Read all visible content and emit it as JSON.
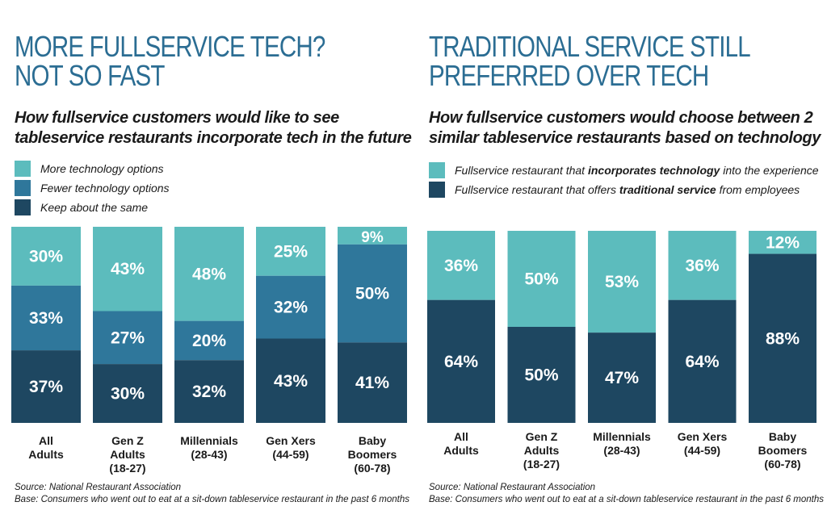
{
  "colors": {
    "light": "#5cbcbd",
    "mid": "#2f779b",
    "dark": "#1e4761"
  },
  "left": {
    "headline": [
      "MORE FULLSERVICE TECH?",
      "NOT SO FAST"
    ],
    "subtitle": [
      "How fullservice customers would like to see",
      "tableservice restaurants incorporate tech in the future"
    ],
    "legend": [
      {
        "label": "More technology options",
        "color": "#5cbcbd"
      },
      {
        "label": "Fewer technology options",
        "color": "#2f779b"
      },
      {
        "label": "Keep about the same",
        "color": "#1e4761"
      }
    ],
    "source": "Source: National Restaurant Association",
    "base": "Base: Consumers who went out to eat at a sit-down tableservice restaurant in the past 6 months"
  },
  "right": {
    "headline": [
      "TRADITIONAL SERVICE STILL",
      "PREFERRED OVER TECH"
    ],
    "subtitle": [
      "How fullservice customers would choose between 2",
      "similar tableservice restaurants based on technology"
    ],
    "legend": [
      {
        "pre": "Fullservice restaurant that ",
        "bold": "incorporates technology",
        "post": " into the experience",
        "color": "#5cbcbd"
      },
      {
        "pre": "Fullservice restaurant that offers ",
        "bold": "traditional service",
        "post": " from employees",
        "color": "#1e4761"
      }
    ],
    "source": "Source: National Restaurant Association",
    "base": "Base: Consumers who went out to eat at a sit-down tableservice restaurant in the past 6 months"
  },
  "chart_data": [
    {
      "type": "bar",
      "stacked": true,
      "orientation": "vertical",
      "title": "More fullservice tech? Not so fast",
      "categories": [
        [
          "All",
          "Adults"
        ],
        [
          "Gen Z",
          "Adults",
          "(18-27)"
        ],
        [
          "Millennials",
          "(28-43)"
        ],
        [
          "Gen Xers",
          "(44-59)"
        ],
        [
          "Baby",
          "Boomers",
          "(60-78)"
        ]
      ],
      "series": [
        {
          "name": "More technology options",
          "values": [
            30,
            43,
            48,
            25,
            9
          ],
          "color": "#5cbcbd"
        },
        {
          "name": "Fewer technology options",
          "values": [
            33,
            27,
            20,
            32,
            50
          ],
          "color": "#2f779b"
        },
        {
          "name": "Keep about the same",
          "values": [
            37,
            30,
            32,
            43,
            41
          ],
          "color": "#1e4761"
        }
      ],
      "ylim": [
        0,
        100
      ],
      "grid": false
    },
    {
      "type": "bar",
      "stacked": true,
      "orientation": "vertical",
      "title": "Traditional service still preferred over tech",
      "categories": [
        [
          "All",
          "Adults"
        ],
        [
          "Gen Z",
          "Adults",
          "(18-27)"
        ],
        [
          "Millennials",
          "(28-43)"
        ],
        [
          "Gen Xers",
          "(44-59)"
        ],
        [
          "Baby",
          "Boomers",
          "(60-78)"
        ]
      ],
      "series": [
        {
          "name": "Fullservice restaurant that incorporates technology into the experience",
          "values": [
            36,
            50,
            53,
            36,
            12
          ],
          "color": "#5cbcbd"
        },
        {
          "name": "Fullservice restaurant that offers traditional service from employees",
          "values": [
            64,
            50,
            47,
            64,
            88
          ],
          "color": "#1e4761"
        }
      ],
      "ylim": [
        0,
        100
      ],
      "grid": false
    }
  ]
}
